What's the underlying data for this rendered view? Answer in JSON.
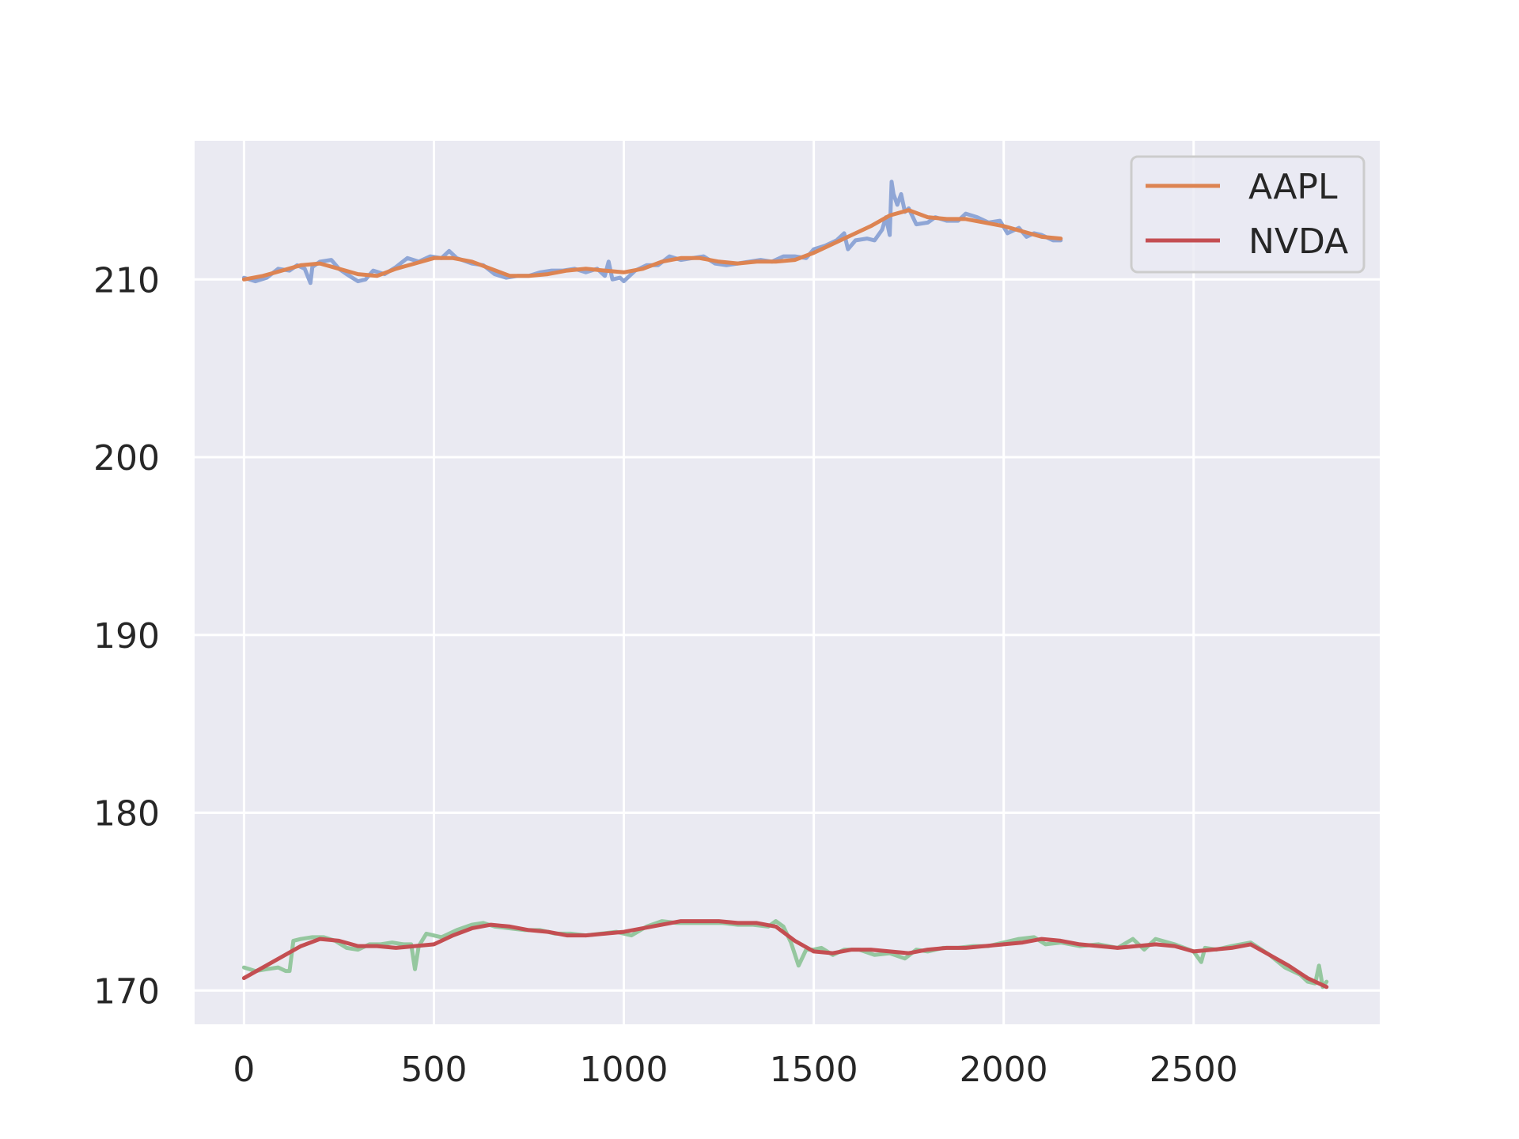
{
  "chart_data": {
    "type": "line",
    "title": "",
    "xlabel": "",
    "ylabel": "",
    "xlim": [
      -130,
      2990
    ],
    "ylim": [
      168.1,
      217.8
    ],
    "xticks": [
      0,
      500,
      1000,
      1500,
      2000,
      2500
    ],
    "yticks": [
      170,
      180,
      190,
      200,
      210
    ],
    "grid": true,
    "legend_position": "top-right",
    "colors": {
      "background": "#eaeaf2",
      "grid": "#ffffff",
      "aapl_raw": "#8fa6d6",
      "aapl_smooth": "#dd8452",
      "nvda_raw": "#95c79f",
      "nvda_smooth": "#c44e52"
    },
    "series": [
      {
        "key": "aapl_raw",
        "color": "#8fa6d6",
        "x": [
          0,
          30,
          60,
          90,
          120,
          140,
          160,
          175,
          180,
          200,
          230,
          250,
          270,
          300,
          320,
          340,
          370,
          400,
          430,
          460,
          490,
          520,
          540,
          560,
          600,
          630,
          660,
          690,
          720,
          750,
          780,
          810,
          840,
          870,
          900,
          930,
          950,
          960,
          970,
          990,
          1000,
          1030,
          1060,
          1090,
          1120,
          1150,
          1180,
          1210,
          1240,
          1270,
          1300,
          1330,
          1360,
          1390,
          1420,
          1450,
          1480,
          1500,
          1530,
          1560,
          1580,
          1590,
          1610,
          1640,
          1660,
          1680,
          1690,
          1700,
          1705,
          1710,
          1720,
          1730,
          1740,
          1750,
          1770,
          1800,
          1820,
          1850,
          1880,
          1900,
          1930,
          1960,
          1990,
          2010,
          2040,
          2060,
          2080,
          2100,
          2130,
          2150
        ],
        "y": [
          210.1,
          209.9,
          210.1,
          210.6,
          210.5,
          210.8,
          210.6,
          209.8,
          210.7,
          211.0,
          211.1,
          210.6,
          210.3,
          209.9,
          210.0,
          210.5,
          210.3,
          210.7,
          211.2,
          211.0,
          211.3,
          211.2,
          211.6,
          211.2,
          210.9,
          210.8,
          210.3,
          210.1,
          210.2,
          210.2,
          210.4,
          210.5,
          210.5,
          210.6,
          210.4,
          210.6,
          210.2,
          211.0,
          210.0,
          210.1,
          209.9,
          210.5,
          210.8,
          210.8,
          211.3,
          211.1,
          211.2,
          211.3,
          210.9,
          210.8,
          210.9,
          211.0,
          211.1,
          211.0,
          211.3,
          211.3,
          211.2,
          211.7,
          211.9,
          212.2,
          212.6,
          211.7,
          212.2,
          212.3,
          212.2,
          212.8,
          213.5,
          212.5,
          215.5,
          214.8,
          214.2,
          214.8,
          213.8,
          214.0,
          213.1,
          213.2,
          213.5,
          213.3,
          213.3,
          213.7,
          213.5,
          213.2,
          213.3,
          212.6,
          212.9,
          212.4,
          212.6,
          212.5,
          212.2,
          212.2
        ]
      },
      {
        "key": "aapl_smooth",
        "name": "AAPL",
        "color": "#dd8452",
        "x": [
          0,
          50,
          100,
          150,
          200,
          250,
          300,
          350,
          400,
          450,
          500,
          550,
          600,
          650,
          700,
          750,
          800,
          850,
          900,
          950,
          1000,
          1050,
          1100,
          1150,
          1200,
          1250,
          1300,
          1350,
          1400,
          1450,
          1500,
          1550,
          1600,
          1650,
          1700,
          1750,
          1800,
          1850,
          1900,
          1950,
          2000,
          2050,
          2100,
          2150
        ],
        "y": [
          210.0,
          210.2,
          210.5,
          210.8,
          210.9,
          210.6,
          210.3,
          210.2,
          210.6,
          210.9,
          211.2,
          211.2,
          211.0,
          210.6,
          210.2,
          210.2,
          210.3,
          210.5,
          210.6,
          210.5,
          210.4,
          210.6,
          211.0,
          211.2,
          211.2,
          211.0,
          210.9,
          211.0,
          211.0,
          211.1,
          211.5,
          212.0,
          212.5,
          213.0,
          213.6,
          213.9,
          213.5,
          213.4,
          213.4,
          213.2,
          213.0,
          212.7,
          212.4,
          212.3
        ]
      },
      {
        "key": "nvda_raw",
        "color": "#95c79f",
        "x": [
          0,
          30,
          60,
          90,
          110,
          120,
          130,
          150,
          180,
          210,
          240,
          270,
          300,
          330,
          360,
          390,
          420,
          440,
          450,
          460,
          480,
          520,
          560,
          600,
          630,
          660,
          700,
          740,
          780,
          820,
          860,
          900,
          940,
          980,
          1020,
          1060,
          1100,
          1140,
          1180,
          1220,
          1260,
          1300,
          1340,
          1380,
          1400,
          1420,
          1440,
          1460,
          1480,
          1500,
          1520,
          1550,
          1580,
          1620,
          1660,
          1700,
          1740,
          1770,
          1800,
          1840,
          1880,
          1920,
          1960,
          2000,
          2040,
          2080,
          2110,
          2150,
          2200,
          2250,
          2300,
          2340,
          2370,
          2400,
          2450,
          2500,
          2520,
          2530,
          2560,
          2600,
          2650,
          2700,
          2740,
          2780,
          2800,
          2820,
          2830,
          2840,
          2850
        ],
        "y": [
          171.3,
          171.1,
          171.2,
          171.3,
          171.1,
          171.1,
          172.8,
          172.9,
          173.0,
          173.0,
          172.8,
          172.4,
          172.3,
          172.6,
          172.6,
          172.7,
          172.6,
          172.6,
          171.2,
          172.5,
          173.2,
          173.0,
          173.4,
          173.7,
          173.8,
          173.6,
          173.5,
          173.4,
          173.4,
          173.2,
          173.2,
          173.1,
          173.2,
          173.3,
          173.1,
          173.6,
          173.9,
          173.8,
          173.8,
          173.8,
          173.8,
          173.7,
          173.7,
          173.6,
          173.9,
          173.6,
          172.7,
          171.4,
          172.3,
          172.3,
          172.4,
          172.0,
          172.3,
          172.3,
          172.0,
          172.1,
          171.8,
          172.3,
          172.2,
          172.4,
          172.4,
          172.5,
          172.5,
          172.7,
          172.9,
          173.0,
          172.6,
          172.7,
          172.5,
          172.6,
          172.4,
          172.9,
          172.3,
          172.9,
          172.6,
          172.2,
          171.6,
          172.4,
          172.3,
          172.5,
          172.7,
          172.0,
          171.3,
          170.9,
          170.5,
          170.4,
          171.4,
          170.2,
          170.5
        ],
        "_": null
      },
      {
        "key": "nvda_smooth",
        "name": "NVDA",
        "color": "#c44e52",
        "x": [
          0,
          50,
          100,
          150,
          200,
          250,
          300,
          350,
          400,
          450,
          500,
          550,
          600,
          650,
          700,
          750,
          800,
          850,
          900,
          950,
          1000,
          1050,
          1100,
          1150,
          1200,
          1250,
          1300,
          1350,
          1400,
          1450,
          1500,
          1550,
          1600,
          1650,
          1700,
          1750,
          1800,
          1850,
          1900,
          1950,
          2000,
          2050,
          2100,
          2150,
          2200,
          2250,
          2300,
          2350,
          2400,
          2450,
          2500,
          2550,
          2600,
          2650,
          2700,
          2750,
          2800,
          2850
        ],
        "y": [
          170.7,
          171.3,
          171.9,
          172.5,
          172.9,
          172.8,
          172.5,
          172.5,
          172.4,
          172.5,
          172.6,
          173.1,
          173.5,
          173.7,
          173.6,
          173.4,
          173.3,
          173.1,
          173.1,
          173.2,
          173.3,
          173.5,
          173.7,
          173.9,
          173.9,
          173.9,
          173.8,
          173.8,
          173.6,
          172.8,
          172.2,
          172.1,
          172.3,
          172.3,
          172.2,
          172.1,
          172.3,
          172.4,
          172.4,
          172.5,
          172.6,
          172.7,
          172.9,
          172.8,
          172.6,
          172.5,
          172.4,
          172.5,
          172.6,
          172.5,
          172.2,
          172.3,
          172.4,
          172.6,
          172.0,
          171.4,
          170.7,
          170.2
        ]
      }
    ],
    "legend": [
      "AAPL",
      "NVDA"
    ]
  }
}
